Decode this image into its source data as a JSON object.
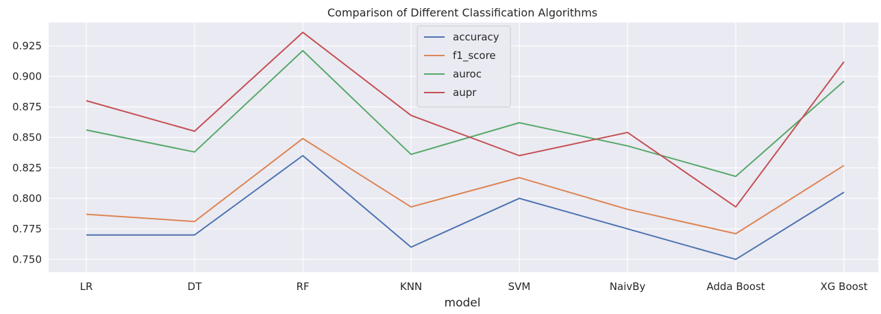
{
  "chart_data": {
    "type": "line",
    "title": "Comparison of Different Classification Algorithms",
    "xlabel": "model",
    "ylabel": "",
    "categories": [
      "LR",
      "DT",
      "RF",
      "KNN",
      "SVM",
      "NaivBy",
      "Adda Boost",
      "XG Boost"
    ],
    "ylim": [
      0.7395,
      0.944
    ],
    "yticks": [
      0.75,
      0.775,
      0.8,
      0.825,
      0.85,
      0.875,
      0.9,
      0.925
    ],
    "ytick_labels": [
      "0.750",
      "0.775",
      "0.800",
      "0.825",
      "0.850",
      "0.875",
      "0.900",
      "0.925"
    ],
    "grid": true,
    "legend_position": "top-center",
    "series": [
      {
        "name": "accuracy",
        "color": "#4c72b0",
        "values": [
          0.77,
          0.77,
          0.835,
          0.76,
          0.8,
          0.775,
          0.75,
          0.805
        ]
      },
      {
        "name": "f1_score",
        "color": "#dd8452",
        "values": [
          0.787,
          0.781,
          0.849,
          0.793,
          0.817,
          0.791,
          0.771,
          0.827
        ]
      },
      {
        "name": "auroc",
        "color": "#55a868",
        "values": [
          0.856,
          0.838,
          0.921,
          0.836,
          0.862,
          0.843,
          0.818,
          0.896
        ]
      },
      {
        "name": "aupr",
        "color": "#c44e52",
        "values": [
          0.88,
          0.855,
          0.936,
          0.868,
          0.835,
          0.854,
          0.793,
          0.912
        ]
      }
    ]
  }
}
